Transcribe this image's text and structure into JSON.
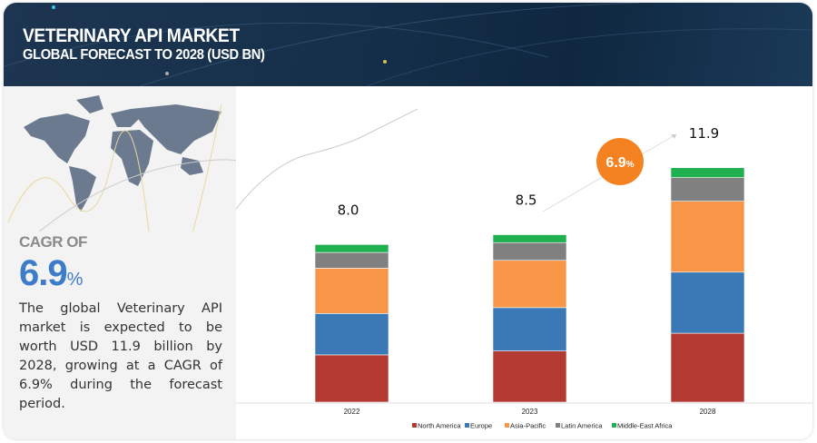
{
  "header": {
    "title": "VETERINARY API MARKET",
    "subtitle": "GLOBAL FORECAST TO 2028 (USD BN)"
  },
  "sidebar": {
    "cagr_label": "CAGR OF",
    "cagr_value": "6.9",
    "cagr_unit": "%",
    "description": "The global Veterinary API market is expected to be worth USD 11.9 billion by 2028, growing at a CAGR of 6.9% during the forecast period.",
    "map_icon": "world-map-icon"
  },
  "chart_data": {
    "type": "bar",
    "stacked": true,
    "categories": [
      "2022",
      "2023",
      "2028"
    ],
    "totals": [
      "8.0",
      "8.5",
      "11.9"
    ],
    "series": [
      {
        "name": "North America",
        "color": "#b33a32",
        "values": [
          2.4,
          2.6,
          3.5
        ]
      },
      {
        "name": "Europe",
        "color": "#3a78b6",
        "values": [
          2.1,
          2.2,
          3.1
        ]
      },
      {
        "name": "Asia-Pacific",
        "color": "#f79646",
        "values": [
          2.3,
          2.4,
          3.6
        ]
      },
      {
        "name": "Latin America",
        "color": "#808080",
        "values": [
          0.8,
          0.9,
          1.2
        ]
      },
      {
        "name": "Middle-East Africa",
        "color": "#1fb050",
        "values": [
          0.4,
          0.4,
          0.5
        ]
      }
    ],
    "cagr_badge": {
      "value": "6.9",
      "unit": "%",
      "color": "#f58220"
    },
    "legend": "bottom",
    "grid": false
  }
}
